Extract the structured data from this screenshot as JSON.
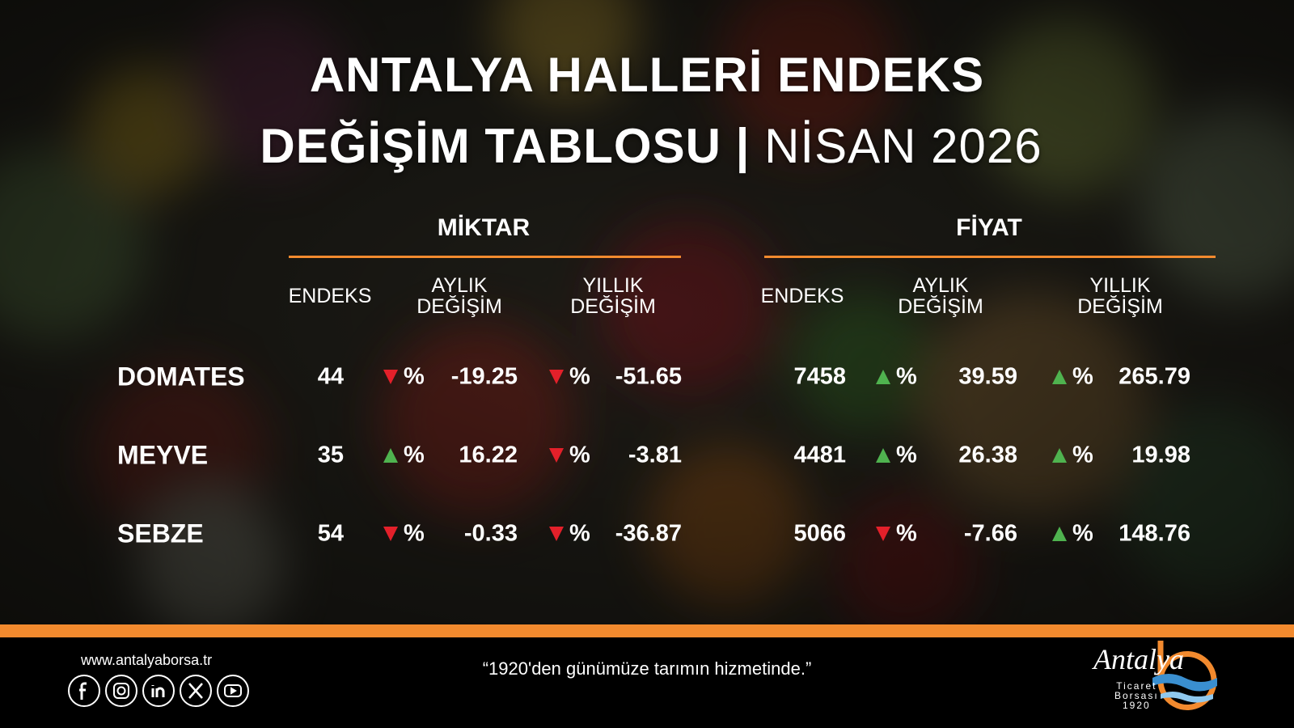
{
  "header": {
    "title_line1": "ANTALYA HALLERİ ENDEKS",
    "title_line2": "DEĞİŞİM TABLOSU",
    "separator": "|",
    "period": "NİSAN 2026"
  },
  "table": {
    "groups": [
      "MİKTAR",
      "FİYAT"
    ],
    "column_headers": [
      [
        "ENDEKS"
      ],
      [
        "AYLIK",
        "DEĞİŞİM"
      ],
      [
        "YILLIK",
        "DEĞİŞİM"
      ]
    ],
    "colors": {
      "up": "#4fb34f",
      "down": "#e3202a"
    },
    "rows": [
      {
        "name": "DOMATES",
        "miktar": {
          "endeks": 44,
          "aylik": {
            "direction": "down",
            "unit": "%",
            "value": -19.25
          },
          "yillik": {
            "direction": "down",
            "unit": "%",
            "value": -51.65
          }
        },
        "fiyat": {
          "endeks": 7458,
          "aylik": {
            "direction": "up",
            "unit": "%",
            "value": 39.59
          },
          "yillik": {
            "direction": "up",
            "unit": "%",
            "value": 265.79
          }
        }
      },
      {
        "name": "MEYVE",
        "miktar": {
          "endeks": 35,
          "aylik": {
            "direction": "up",
            "unit": "%",
            "value": 16.22
          },
          "yillik": {
            "direction": "down",
            "unit": "%",
            "value": -3.81
          }
        },
        "fiyat": {
          "endeks": 4481,
          "aylik": {
            "direction": "up",
            "unit": "%",
            "value": 26.38
          },
          "yillik": {
            "direction": "up",
            "unit": "%",
            "value": 19.98
          }
        }
      },
      {
        "name": "SEBZE",
        "miktar": {
          "endeks": 54,
          "aylik": {
            "direction": "down",
            "unit": "%",
            "value": -0.33
          },
          "yillik": {
            "direction": "down",
            "unit": "%",
            "value": -36.87
          }
        },
        "fiyat": {
          "endeks": 5066,
          "aylik": {
            "direction": "down",
            "unit": "%",
            "value": -7.66
          },
          "yillik": {
            "direction": "up",
            "unit": "%",
            "value": 148.76
          }
        }
      }
    ]
  },
  "footer": {
    "website": "www.antalyaborsa.tr",
    "slogan": "“1920'den günümüze tarımın hizmetinde.”",
    "logo": {
      "name": "Antalya",
      "line1": "Ticaret",
      "line2": "Borsası",
      "year": "1920"
    }
  }
}
